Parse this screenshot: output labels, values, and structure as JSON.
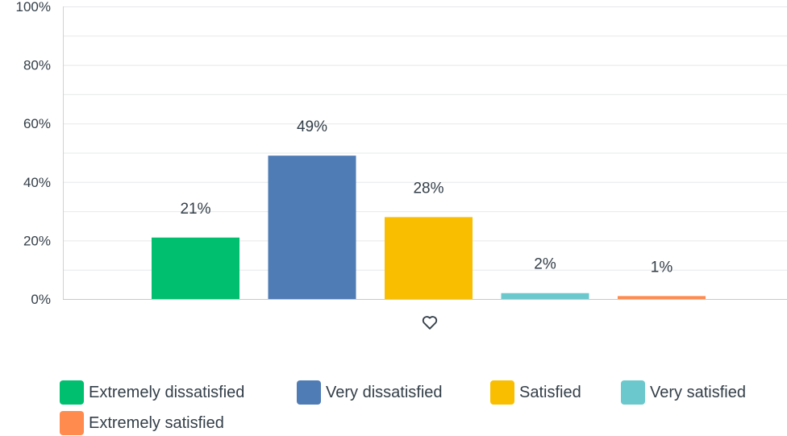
{
  "chart_data": {
    "type": "bar",
    "categories": [
      "Extremely dissatisfied",
      "Very dissatisfied",
      "Satisfied",
      "Very satisfied",
      "Extremely satisfied"
    ],
    "values": [
      21,
      49,
      28,
      2,
      1
    ],
    "data_labels": [
      "21%",
      "49%",
      "28%",
      "2%",
      "1%"
    ],
    "colors": [
      "#00bf6f",
      "#507cb6",
      "#f9be00",
      "#6bc8cd",
      "#ff8b4f"
    ],
    "ylim": [
      0,
      100
    ],
    "yticks": [
      "0%",
      "20%",
      "40%",
      "60%",
      "80%",
      "100%"
    ],
    "grid": true,
    "legend_position": "bottom",
    "title": "",
    "xlabel": "",
    "ylabel": ""
  },
  "icons": {
    "below_axis": "heart-icon"
  }
}
